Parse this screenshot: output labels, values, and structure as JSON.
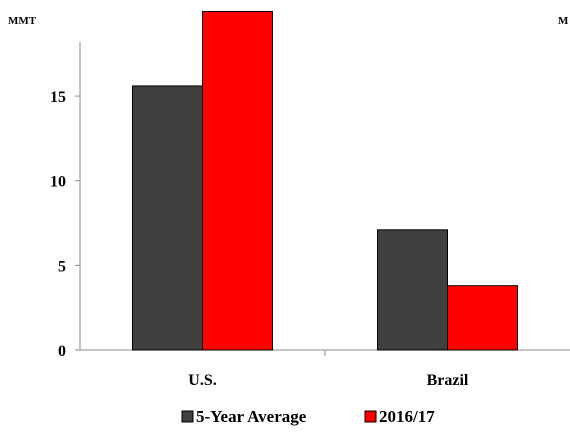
{
  "chart_data": {
    "type": "bar",
    "unit_left": "MMT",
    "unit_right": "M",
    "categories": [
      "U.S.",
      "Brazil"
    ],
    "series": [
      {
        "name": "5-Year Average",
        "values": [
          15.6,
          7.1
        ],
        "color": "#404040"
      },
      {
        "name": "2016/17",
        "values": [
          20.0,
          3.8
        ],
        "color": "#ff0000"
      }
    ],
    "yticks": [
      0,
      5,
      10,
      15
    ],
    "ylim": [
      0,
      19.2
    ],
    "grid": false,
    "legend_position": "bottom"
  }
}
